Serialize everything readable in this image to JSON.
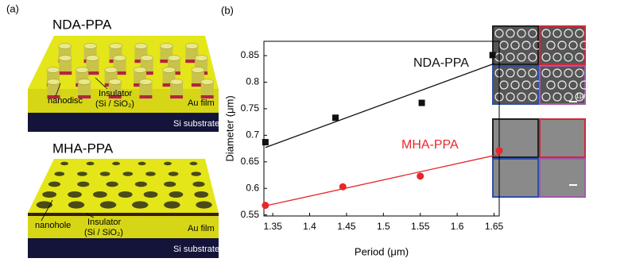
{
  "panel_a": {
    "label": "(a)",
    "top": {
      "title": "NDA-PPA",
      "feature": "nanodisc",
      "insulator": "Insulator",
      "insulator_material": "(Si / SiO₂)",
      "film": "Au film",
      "substrate": "Si substrate"
    },
    "bottom": {
      "title": "MHA-PPA",
      "feature": "nanohole",
      "insulator": "Insulator",
      "insulator_material": "(Si / SiO₂)",
      "film": "Au film",
      "substrate": "Si substrate"
    }
  },
  "panel_b_label": "(b)",
  "sem_scale_label": "1μm",
  "chart_data": {
    "type": "scatter",
    "x_label": "Period (μm)",
    "y_label": "Diameter (μm)",
    "xlim": [
      1.338,
      1.657
    ],
    "ylim": [
      0.548,
      0.877
    ],
    "xticks": [
      1.35,
      1.4,
      1.45,
      1.5,
      1.55,
      1.6,
      1.65
    ],
    "yticks": [
      0.55,
      0.6,
      0.65,
      0.7,
      0.75,
      0.8,
      0.85
    ],
    "series": [
      {
        "name": "NDA-PPA",
        "color": "#111111",
        "marker": "square",
        "x": [
          1.34,
          1.435,
          1.552,
          1.648
        ],
        "values": [
          0.687,
          0.733,
          0.761,
          0.851
        ]
      },
      {
        "name": "MHA-PPA",
        "color": "#e8262b",
        "marker": "circle",
        "x": [
          1.34,
          1.445,
          1.55,
          1.657
        ],
        "values": [
          0.568,
          0.603,
          0.623,
          0.671
        ]
      }
    ],
    "fits": [
      {
        "color": "#111111",
        "x": [
          1.34,
          1.65
        ],
        "values": [
          0.677,
          0.835
        ]
      },
      {
        "color": "#e8262b",
        "x": [
          1.34,
          1.657
        ],
        "values": [
          0.567,
          0.664
        ]
      }
    ]
  }
}
